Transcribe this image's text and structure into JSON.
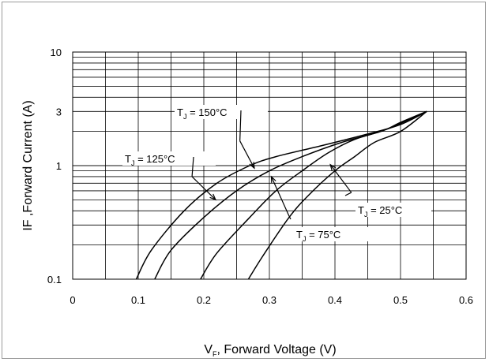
{
  "chart_data": {
    "type": "line",
    "title": "",
    "xlabel_main": "V",
    "xlabel_sub": "F",
    "xlabel_rest": ", Forward Voltage (V)",
    "ylabel": "IF ,Forward Current (A)",
    "xlim": [
      0,
      0.6
    ],
    "ylim": [
      0.1,
      10
    ],
    "yscale": "log",
    "grid": true,
    "x_ticks": [
      "0",
      "0.1",
      "0.2",
      "0.3",
      "0.4",
      "0.5",
      "0.6"
    ],
    "y_ticks": [
      {
        "label": "10",
        "value": 10
      },
      {
        "label": "3",
        "value": 3
      },
      {
        "label": "1",
        "value": 1
      },
      {
        "label": "0.1",
        "value": 0.1
      }
    ],
    "series": [
      {
        "key": "t150",
        "points": [
          [
            0.097,
            0.1
          ],
          [
            0.12,
            0.18
          ],
          [
            0.17,
            0.4
          ],
          [
            0.22,
            0.7
          ],
          [
            0.27,
            1.0
          ],
          [
            0.31,
            1.2
          ],
          [
            0.38,
            1.5
          ],
          [
            0.45,
            1.9
          ],
          [
            0.5,
            2.3
          ],
          [
            0.54,
            3.0
          ]
        ]
      },
      {
        "key": "t125",
        "points": [
          [
            0.125,
            0.1
          ],
          [
            0.15,
            0.18
          ],
          [
            0.2,
            0.35
          ],
          [
            0.25,
            0.6
          ],
          [
            0.3,
            0.9
          ],
          [
            0.35,
            1.2
          ],
          [
            0.41,
            1.6
          ],
          [
            0.47,
            2.0
          ],
          [
            0.5,
            2.4
          ],
          [
            0.54,
            3.0
          ]
        ]
      },
      {
        "key": "t75",
        "points": [
          [
            0.195,
            0.1
          ],
          [
            0.22,
            0.17
          ],
          [
            0.27,
            0.35
          ],
          [
            0.31,
            0.6
          ],
          [
            0.35,
            0.9
          ],
          [
            0.39,
            1.3
          ],
          [
            0.43,
            1.7
          ],
          [
            0.48,
            2.1
          ],
          [
            0.54,
            3.0
          ]
        ]
      },
      {
        "key": "t25",
        "points": [
          [
            0.268,
            0.1
          ],
          [
            0.29,
            0.16
          ],
          [
            0.33,
            0.35
          ],
          [
            0.36,
            0.55
          ],
          [
            0.4,
            0.9
          ],
          [
            0.43,
            1.2
          ],
          [
            0.46,
            1.6
          ],
          [
            0.5,
            2.0
          ],
          [
            0.54,
            3.0
          ]
        ]
      }
    ],
    "annotations": [
      {
        "key": "t150",
        "prefix": "T",
        "sub": "J",
        "rest": " = 150°C",
        "tip": [
          0.277,
          0.95
        ],
        "base": [
          0.255,
          1.65
        ]
      },
      {
        "key": "t125",
        "prefix": "T",
        "sub": "J",
        "rest": " = 125°C",
        "tip": [
          0.218,
          0.5
        ],
        "base": [
          0.182,
          0.8
        ]
      },
      {
        "key": "t75",
        "prefix": "T",
        "sub": "J",
        "rest": " = 75°C",
        "tip": [
          0.303,
          0.8
        ],
        "base": [
          0.33,
          0.36
        ]
      },
      {
        "key": "t25",
        "prefix": "T",
        "sub": "J",
        "rest": " = 25°C",
        "tip": [
          0.393,
          1.02
        ],
        "base": [
          0.425,
          0.58
        ]
      }
    ]
  }
}
